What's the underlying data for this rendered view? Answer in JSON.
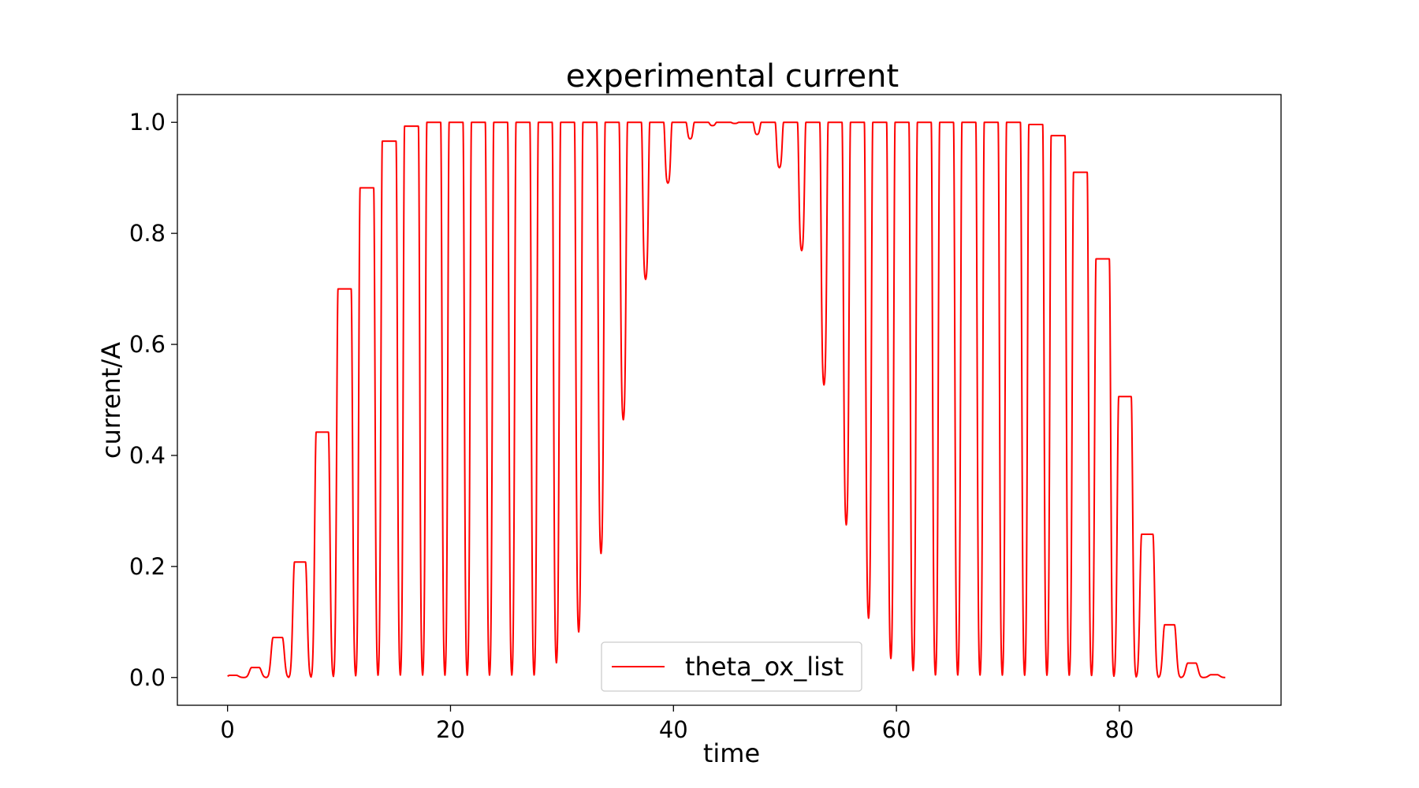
{
  "chart_data": {
    "type": "line",
    "title": "experimental current",
    "xlabel": "time",
    "ylabel": "current/A",
    "xlim": [
      -4.5,
      94.5
    ],
    "ylim": [
      -0.05,
      1.05
    ],
    "xticks": [
      0,
      20,
      40,
      60,
      80
    ],
    "yticks": [
      0.0,
      0.2,
      0.4,
      0.6,
      0.8,
      1.0
    ],
    "xtick_labels": [
      "0",
      "20",
      "40",
      "60",
      "80"
    ],
    "ytick_labels": [
      "0.0",
      "0.2",
      "0.4",
      "0.6",
      "0.8",
      "1.0"
    ],
    "grid": false,
    "legend": {
      "placement": "bottom-center",
      "entries": [
        "theta_ox_list"
      ]
    },
    "series": [
      {
        "name": "theta_ox_list",
        "color": "#ff0000",
        "x_range": [
          0,
          89.5
        ],
        "period": 2.0,
        "peak_times": [
          0.5,
          2.5,
          4.5,
          6.5,
          8.5,
          10.5,
          12.5,
          14.5,
          16.5,
          18.5,
          20.5,
          22.5,
          24.5,
          26.5,
          28.5,
          30.5,
          32.5,
          34.5,
          36.5,
          38.5,
          40.5,
          42.5,
          44.5,
          46.5,
          48.5,
          50.5,
          52.5,
          54.5,
          56.5,
          58.5,
          60.5,
          62.5,
          64.5,
          66.5,
          68.5,
          70.5,
          72.5,
          74.5,
          76.5,
          78.5,
          80.5,
          82.5,
          84.5,
          86.5,
          88.5
        ],
        "peak_values": [
          0.004,
          0.018,
          0.072,
          0.208,
          0.442,
          0.7,
          0.882,
          0.966,
          0.993,
          1.0,
          1.0,
          1.0,
          1.0,
          1.0,
          1.0,
          1.0,
          1.0,
          1.0,
          1.0,
          1.0,
          1.0,
          1.0,
          1.0,
          1.0,
          1.0,
          1.0,
          1.0,
          1.0,
          1.0,
          1.0,
          1.0,
          1.0,
          1.0,
          1.0,
          1.0,
          1.0,
          0.996,
          0.976,
          0.91,
          0.754,
          0.506,
          0.258,
          0.095,
          0.026,
          0.005
        ],
        "trough_times": [
          29.5,
          31.5,
          33.5,
          35.5,
          37.5,
          39.5,
          41.5,
          43.5,
          45.5,
          47.5,
          49.5,
          51.5,
          53.5,
          55.5,
          57.5,
          59.5,
          61.5
        ],
        "trough_values": [
          0.022,
          0.078,
          0.22,
          0.462,
          0.716,
          0.89,
          0.97,
          0.994,
          0.998,
          0.978,
          0.918,
          0.768,
          0.525,
          0.272,
          0.103,
          0.03,
          0.008
        ]
      }
    ]
  }
}
